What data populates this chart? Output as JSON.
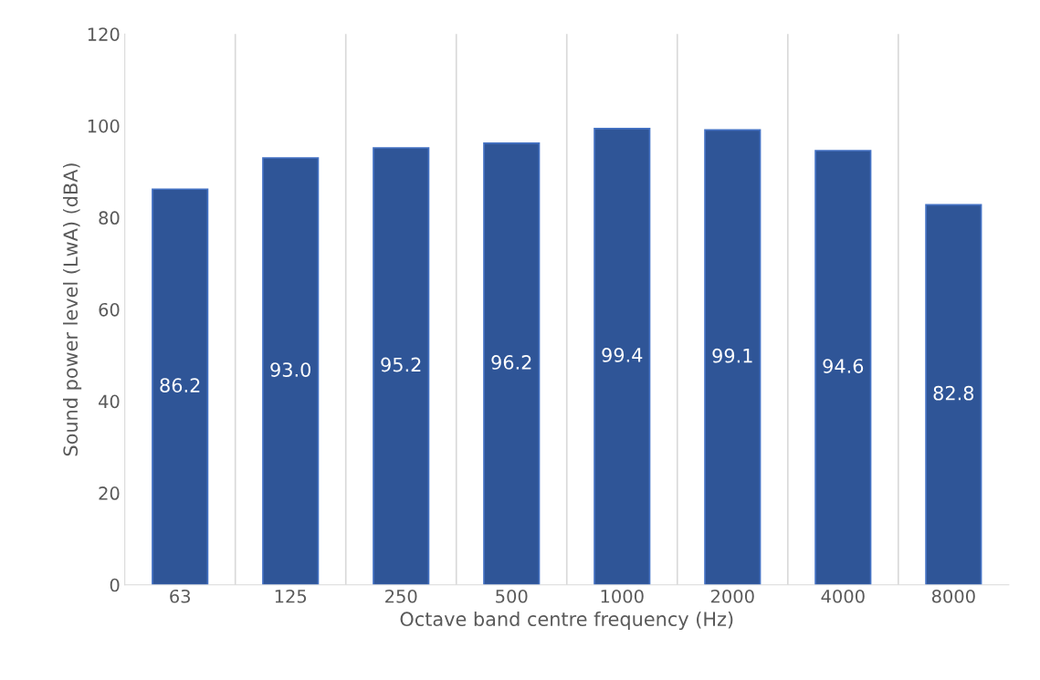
{
  "chart_data": {
    "type": "bar",
    "xlabel": "Octave band centre frequency (Hz)",
    "ylabel": "Sound power level (LwA) (dBA)",
    "categories": [
      "63",
      "125",
      "250",
      "500",
      "1000",
      "2000",
      "4000",
      "8000"
    ],
    "values": [
      86.2,
      93.0,
      95.2,
      96.2,
      99.4,
      99.1,
      94.6,
      82.8
    ],
    "color": "#2f5597",
    "ylim": [
      0,
      120
    ],
    "yticks": [
      0,
      20,
      40,
      60,
      80,
      100,
      120
    ],
    "value_labels": [
      "86.2",
      "93.0",
      "95.2",
      "96.2",
      "99.4",
      "99.1",
      "94.6",
      "82.8"
    ],
    "grid": "x",
    "legend": false
  }
}
